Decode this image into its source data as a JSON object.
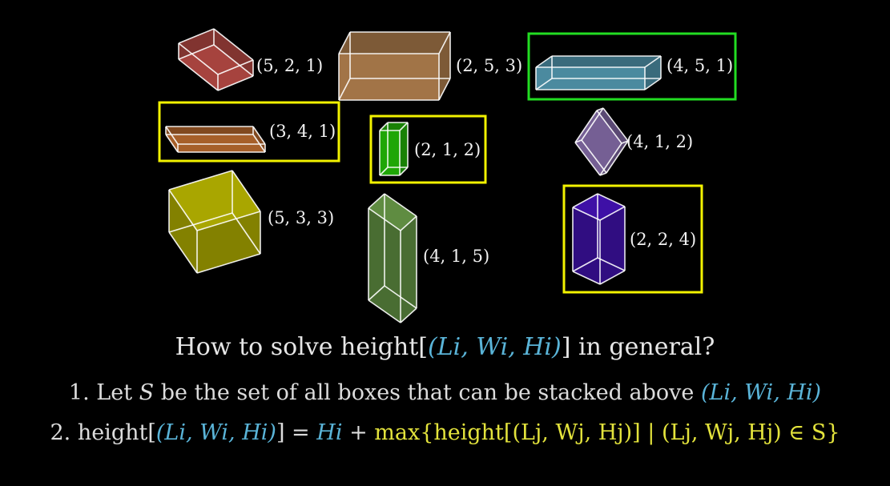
{
  "colors": {
    "highlight_yellow": "#f2f200",
    "highlight_green": "#22dd22",
    "math_blue": "#5ab4d8",
    "math_yellow": "#e3e33c",
    "edge": "#ffffff"
  },
  "boxes": [
    {
      "label": "(5, 2, 1)",
      "color": "#f0605a",
      "highlight": "none"
    },
    {
      "label": "(2, 5, 3)",
      "color": "#e9a868",
      "highlight": "none"
    },
    {
      "label": "(4, 5, 1)",
      "color": "#6cc6e6",
      "highlight": "green"
    },
    {
      "label": "(3, 4, 1)",
      "color": "#f08a3c",
      "highlight": "yellow"
    },
    {
      "label": "(2, 1, 2)",
      "color": "#2ef00a",
      "highlight": "yellow"
    },
    {
      "label": "(4, 1, 2)",
      "color": "#a98ad6",
      "highlight": "none"
    },
    {
      "label": "(5, 3, 3)",
      "color": "#f4f000",
      "highlight": "none"
    },
    {
      "label": "(4, 1, 5)",
      "color": "#8acb5e",
      "highlight": "none"
    },
    {
      "label": "(2, 2, 4)",
      "color": "#5b18f0",
      "highlight": "yellow"
    }
  ],
  "question": {
    "prefix": "How to solve height[",
    "tuple": "(Li, Wi, Hi)",
    "suffix": "] in general?"
  },
  "step1": {
    "number": "1.",
    "text_a": "Let",
    "var_S": "S",
    "text_b": "be the set of all boxes that can be stacked above",
    "tuple": "(Li, Wi, Hi)"
  },
  "step2": {
    "number": "2.",
    "lhs_a": "height[",
    "lhs_tuple": "(Li, Wi, Hi)",
    "lhs_b": "] =",
    "h_i": "Hi",
    "plus": "+",
    "max_expr": "max{height[(Lj, Wj, Hj)] | (Lj, Wj, Hj) ∈ S}"
  }
}
